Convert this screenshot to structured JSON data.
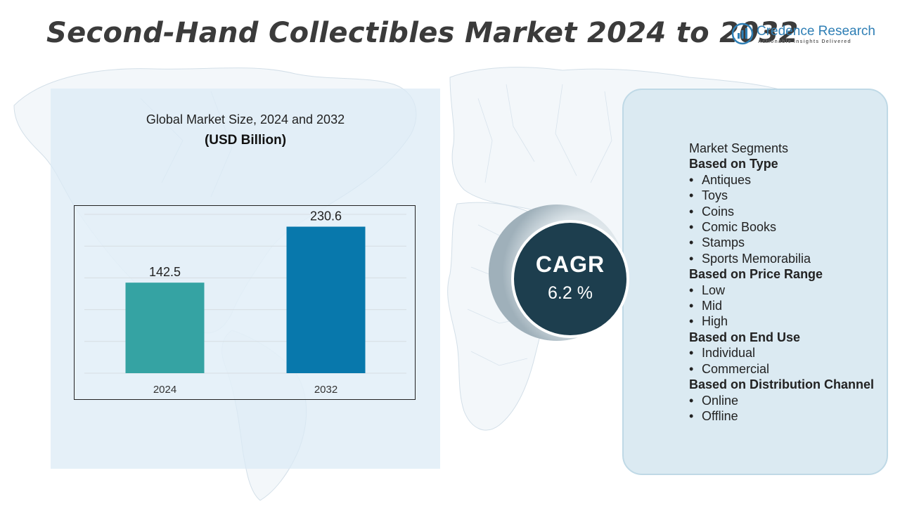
{
  "title": "Second-Hand Collectibles Market 2024 to 2032",
  "logo": {
    "name": "Credence Research",
    "tagline": "Actionable Insights Delivered"
  },
  "chart_title": "Global Market Size,  2024 and 2032",
  "chart_unit": "(USD Billion)",
  "colors": {
    "bar_2024": "#35a3a3",
    "bar_2032": "#0878ac",
    "cagr_circle": "#1d3e4e",
    "title": "#3b3b3b",
    "logo_blue": "#2f7fb5"
  },
  "chart_data": {
    "type": "bar",
    "title": "Global Market Size,  2024 and 2032",
    "ylabel": "(USD Billion)",
    "xlabel": "",
    "categories": [
      "2024",
      "2032"
    ],
    "values": [
      142.5,
      230.6
    ],
    "ylim": [
      0,
      250
    ],
    "grid": true
  },
  "cagr": {
    "label": "CAGR",
    "value": "6.2 %"
  },
  "segments": {
    "heading": "Market Segments",
    "groups": [
      {
        "title": "Based on Type",
        "items": [
          "Antiques",
          "Toys",
          "Coins",
          "Comic Books",
          "Stamps",
          "Sports Memorabilia"
        ]
      },
      {
        "title": "Based on Price Range",
        "items": [
          "Low",
          "Mid",
          "High"
        ]
      },
      {
        "title": "Based on End Use",
        "items": [
          "Individual",
          "Commercial"
        ]
      },
      {
        "title": "Based on Distribution Channel",
        "items": [
          "Online",
          "Offline"
        ]
      }
    ]
  }
}
